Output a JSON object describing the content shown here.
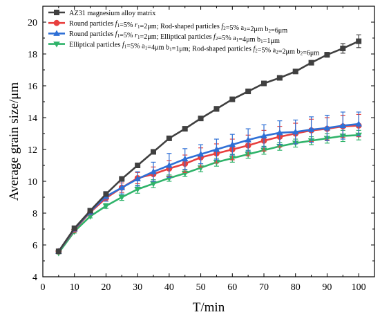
{
  "chart_data": {
    "type": "line",
    "title": "",
    "xlabel": "T/min",
    "ylabel": "Average grain size/μm",
    "xlim": [
      0,
      105
    ],
    "ylim": [
      4,
      21
    ],
    "x_ticks": [
      0,
      10,
      20,
      30,
      40,
      50,
      60,
      70,
      80,
      90,
      100
    ],
    "y_ticks": [
      4,
      6,
      8,
      10,
      12,
      14,
      16,
      18,
      20
    ],
    "grid": false,
    "legend_position": "top-left",
    "x": [
      5,
      10,
      15,
      20,
      25,
      30,
      35,
      40,
      45,
      50,
      55,
      60,
      65,
      70,
      75,
      80,
      85,
      90,
      95,
      100
    ],
    "series": [
      {
        "name": "AZ31 magnesium alloy matrix",
        "color": "#404040",
        "marker": "square",
        "values": [
          5.6,
          7.05,
          8.15,
          9.2,
          10.15,
          11.0,
          11.85,
          12.7,
          13.3,
          13.95,
          14.55,
          15.15,
          15.65,
          16.15,
          16.5,
          16.9,
          17.45,
          17.95,
          18.35,
          18.8
        ],
        "errors": [
          0.08,
          0.08,
          0.08,
          0.08,
          0.1,
          0.1,
          0.1,
          0.1,
          0.1,
          0.1,
          0.15,
          0.12,
          0.12,
          0.12,
          0.12,
          0.12,
          0.12,
          0.15,
          0.3,
          0.4
        ]
      },
      {
        "name": "Round particles f1=5% r1=2μm; Rod-shaped particles f2=5% a2=2μm b2=6μm",
        "legend_parts": [
          [
            "Round particles ",
            ""
          ],
          [
            "f",
            "i"
          ],
          [
            "1",
            "sub"
          ],
          [
            "=5% ",
            ""
          ],
          [
            "r",
            "i"
          ],
          [
            "1",
            "sub"
          ],
          [
            "=2μm; Rod-shaped particles ",
            ""
          ],
          [
            "f",
            "i"
          ],
          [
            "2",
            "sub"
          ],
          [
            "=5% a",
            ""
          ],
          [
            "2",
            "sub"
          ],
          [
            "=2μm b",
            ""
          ],
          [
            "2",
            "sub"
          ],
          [
            "=6μm",
            ""
          ]
        ],
        "color": "#e8403f",
        "marker": "circle",
        "values": [
          5.6,
          6.95,
          8.05,
          8.95,
          9.6,
          10.2,
          10.45,
          10.8,
          11.1,
          11.5,
          11.75,
          12.0,
          12.25,
          12.55,
          12.8,
          13.0,
          13.2,
          13.3,
          13.45,
          13.5
        ],
        "errors": [
          0.05,
          0.1,
          0.15,
          0.2,
          0.3,
          0.35,
          0.45,
          0.5,
          0.55,
          0.6,
          0.6,
          0.65,
          0.65,
          0.65,
          0.65,
          0.65,
          0.7,
          0.7,
          0.7,
          0.7
        ]
      },
      {
        "name": "Round particles f1=5% r1=2μm; Elliptical particles f2=5% a1=4μm b1=1μm",
        "legend_parts": [
          [
            "Round particles ",
            ""
          ],
          [
            "f",
            "i"
          ],
          [
            "1",
            "sub"
          ],
          [
            "=5% ",
            ""
          ],
          [
            "r",
            "i"
          ],
          [
            "1",
            "sub"
          ],
          [
            "=2μm; Elliptical particles ",
            ""
          ],
          [
            "f",
            "i"
          ],
          [
            "2",
            "sub"
          ],
          [
            "=5% a",
            ""
          ],
          [
            "1",
            "sub"
          ],
          [
            "=4μm b",
            ""
          ],
          [
            "1",
            "sub"
          ],
          [
            "=1μm",
            ""
          ]
        ],
        "color": "#2e6fd6",
        "marker": "triangle-up",
        "values": [
          5.6,
          7.0,
          8.1,
          9.05,
          9.6,
          10.15,
          10.6,
          11.0,
          11.4,
          11.7,
          12.0,
          12.3,
          12.6,
          12.85,
          13.05,
          13.1,
          13.25,
          13.35,
          13.5,
          13.6
        ],
        "errors": [
          0.05,
          0.1,
          0.2,
          0.3,
          0.4,
          0.45,
          0.6,
          0.75,
          0.65,
          0.6,
          0.65,
          0.65,
          0.7,
          0.7,
          0.75,
          0.75,
          0.8,
          0.8,
          0.85,
          0.75
        ]
      },
      {
        "name": "Elliptical particles f1=5% a1=4μm b1=1μm; Rod-shaped particles f2=5% a2=2μm b2=6μm",
        "legend_parts": [
          [
            "Elliptical particles ",
            ""
          ],
          [
            "f",
            "i"
          ],
          [
            "1",
            "sub"
          ],
          [
            "=5% a",
            ""
          ],
          [
            "1",
            "sub"
          ],
          [
            "=4μm b",
            ""
          ],
          [
            "1",
            "sub"
          ],
          [
            "=1μm; Rod-shaped particles ",
            ""
          ],
          [
            "f",
            "i"
          ],
          [
            "2",
            "sub"
          ],
          [
            "=5% a",
            ""
          ],
          [
            "2",
            "sub"
          ],
          [
            "=2μm b",
            ""
          ],
          [
            "2",
            "sub"
          ],
          [
            "=6μm",
            ""
          ]
        ],
        "color": "#2fb36a",
        "marker": "triangle-down",
        "values": [
          5.5,
          6.85,
          7.8,
          8.45,
          9.0,
          9.5,
          9.85,
          10.2,
          10.5,
          10.85,
          11.2,
          11.45,
          11.7,
          11.95,
          12.2,
          12.4,
          12.55,
          12.7,
          12.85,
          12.9
        ],
        "errors": [
          0.05,
          0.1,
          0.1,
          0.15,
          0.2,
          0.25,
          0.25,
          0.2,
          0.2,
          0.25,
          0.25,
          0.25,
          0.25,
          0.25,
          0.25,
          0.25,
          0.25,
          0.3,
          0.35,
          0.3
        ]
      }
    ]
  }
}
